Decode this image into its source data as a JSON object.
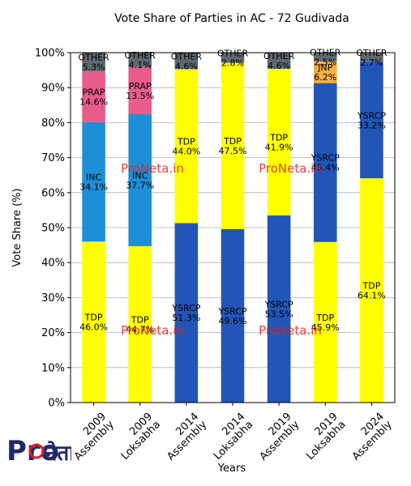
{
  "chart_data": {
    "type": "bar",
    "stacked": true,
    "title": "Vote Share of Parties in AC - 72 Gudivada",
    "xlabel": "Years",
    "ylabel": "Vote Share (%)",
    "ylim": [
      0,
      100
    ],
    "yticks": [
      "0%",
      "10%",
      "20%",
      "30%",
      "40%",
      "50%",
      "60%",
      "70%",
      "80%",
      "90%",
      "100%"
    ],
    "grid": true,
    "categories": [
      [
        "2009",
        "Assembly"
      ],
      [
        "2009",
        "Loksabha"
      ],
      [
        "2014",
        "Assembly"
      ],
      [
        "2014",
        "Loksabha"
      ],
      [
        "2019",
        "Assembly"
      ],
      [
        "2019",
        "Loksabha"
      ],
      [
        "2024",
        "Assembly"
      ]
    ],
    "stacks": [
      [
        {
          "party": "TDP",
          "value": 46.0,
          "color": "#ffff00",
          "label": "46.0%"
        },
        {
          "party": "INC",
          "value": 34.1,
          "color": "#1e8fd6",
          "label": "34.1%"
        },
        {
          "party": "PRAP",
          "value": 14.6,
          "color": "#e85d8a",
          "label": "14.6%"
        },
        {
          "party": "OTHER",
          "value": 5.3,
          "color": "#5e6870",
          "label": "5.3%"
        }
      ],
      [
        {
          "party": "TDP",
          "value": 44.7,
          "color": "#ffff00",
          "label": "44.7%"
        },
        {
          "party": "INC",
          "value": 37.7,
          "color": "#1e8fd6",
          "label": "37.7%"
        },
        {
          "party": "PRAP",
          "value": 13.5,
          "color": "#e85d8a",
          "label": "13.5%"
        },
        {
          "party": "OTHER",
          "value": 4.1,
          "color": "#5e6870",
          "label": "4.1%"
        }
      ],
      [
        {
          "party": "YSRCP",
          "value": 51.3,
          "color": "#2255b8",
          "label": "51.3%"
        },
        {
          "party": "TDP",
          "value": 44.0,
          "color": "#ffff00",
          "label": "44.0%"
        },
        {
          "party": "OTHER",
          "value": 4.6,
          "color": "#5e6870",
          "label": "4.6%"
        }
      ],
      [
        {
          "party": "YSRCP",
          "value": 49.6,
          "color": "#2255b8",
          "label": "49.6%"
        },
        {
          "party": "TDP",
          "value": 47.5,
          "color": "#ffff00",
          "label": "47.5%"
        },
        {
          "party": "OTHER",
          "value": 2.8,
          "color": "#5e6870",
          "label": "2.8%"
        }
      ],
      [
        {
          "party": "YSRCP",
          "value": 53.5,
          "color": "#2255b8",
          "label": "53.5%"
        },
        {
          "party": "TDP",
          "value": 41.9,
          "color": "#ffff00",
          "label": "41.9%"
        },
        {
          "party": "OTHER",
          "value": 4.6,
          "color": "#5e6870",
          "label": "4.6%"
        }
      ],
      [
        {
          "party": "TDP",
          "value": 45.9,
          "color": "#ffff00",
          "label": "45.9%"
        },
        {
          "party": "YSRCP",
          "value": 45.4,
          "color": "#2255b8",
          "label": "45.4%"
        },
        {
          "party": "JNP",
          "value": 6.2,
          "color": "#f5b041",
          "label": "6.2%"
        },
        {
          "party": "OTHER",
          "value": 2.5,
          "color": "#5e6870",
          "label": "2.5%"
        }
      ],
      [
        {
          "party": "TDP",
          "value": 64.1,
          "color": "#ffff00",
          "label": "64.1%"
        },
        {
          "party": "YSRCP",
          "value": 33.2,
          "color": "#2255b8",
          "label": "33.2%"
        },
        {
          "party": "OTHER",
          "value": 2.7,
          "color": "#5e6870",
          "label": "2.7%"
        }
      ]
    ],
    "watermark": "ProNeta.in"
  },
  "logo": {
    "text": "Pro",
    "glyph": "नेता",
    "icon": "proneta-logo-icon",
    "color": "#1f2a6b",
    "accent": "#e11d2a"
  }
}
